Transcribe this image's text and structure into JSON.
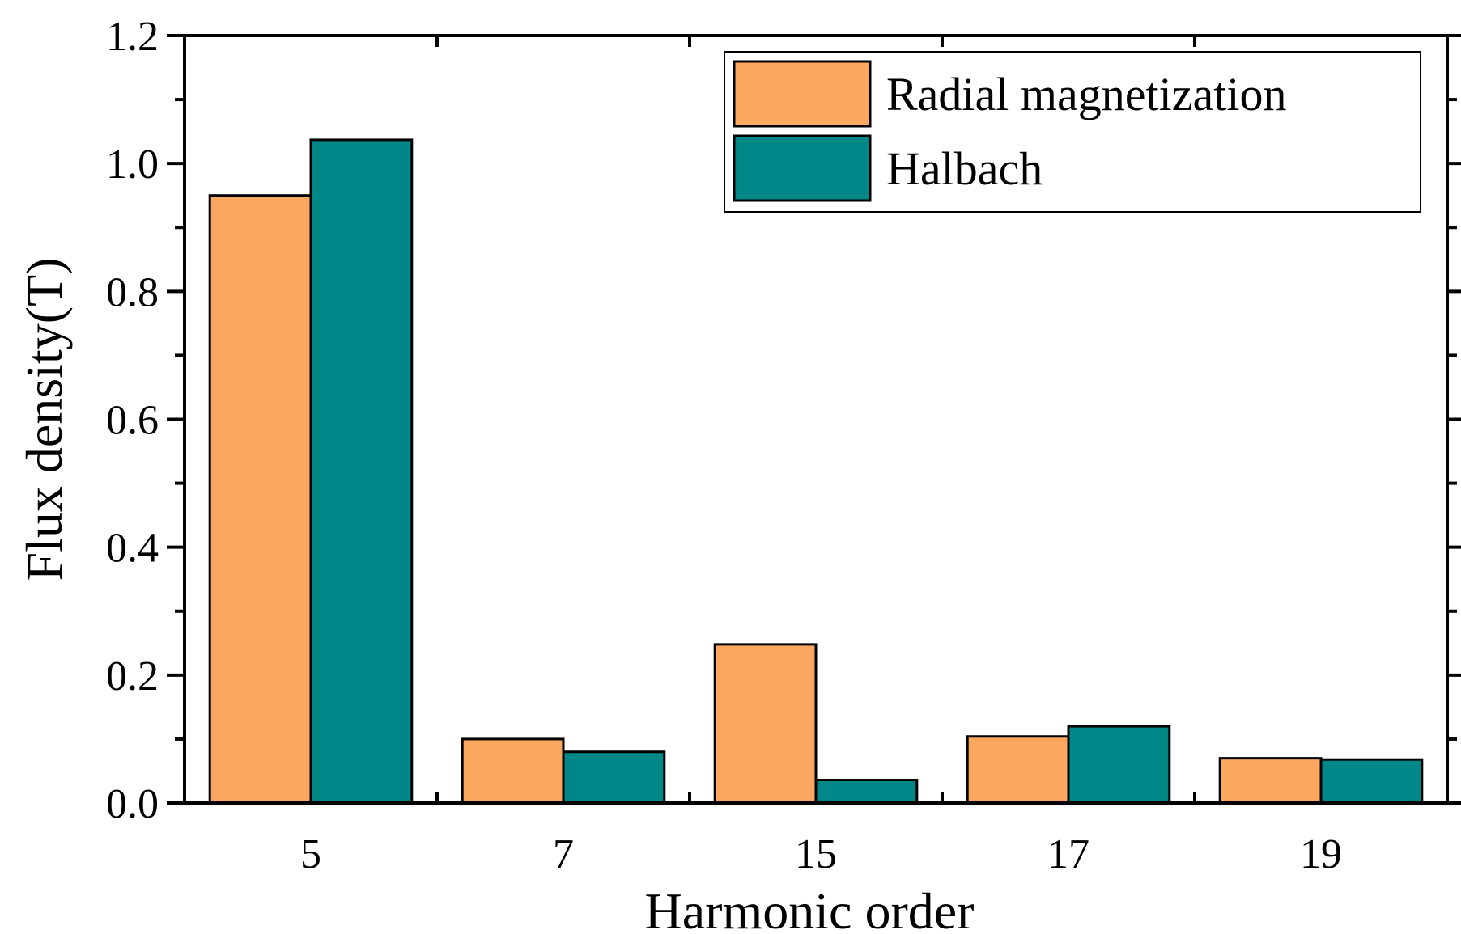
{
  "chart_data": {
    "type": "bar",
    "categories": [
      "5",
      "7",
      "15",
      "17",
      "19"
    ],
    "series": [
      {
        "name": "Radial magnetization",
        "color": "#FCA75F",
        "values": [
          0.95,
          0.1,
          0.248,
          0.104,
          0.07
        ]
      },
      {
        "name": "Halbach",
        "color": "#008888",
        "values": [
          1.037,
          0.08,
          0.036,
          0.12,
          0.068
        ]
      }
    ],
    "xlabel": "Harmonic order",
    "ylabel": "Flux density(T)",
    "ylim": [
      0,
      1.2
    ],
    "yticks": [
      "0.0",
      "0.2",
      "0.4",
      "0.6",
      "0.8",
      "1.0",
      "1.2"
    ],
    "grid": false,
    "legend_position": "top-right"
  }
}
